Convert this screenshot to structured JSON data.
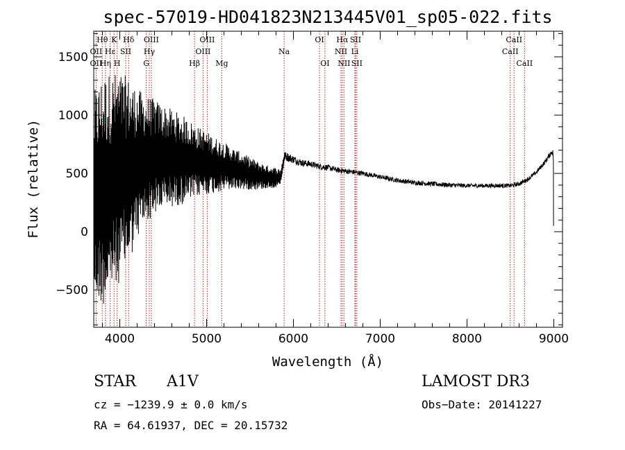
{
  "chart_data": {
    "type": "line",
    "title": "spec-57019-HD041823N213445V01_sp05-022.fits",
    "xlabel": "Wavelength (Å)",
    "ylabel": "Flux (relative)",
    "xlim": [
      3700,
      9100
    ],
    "ylim": [
      -820,
      1720
    ],
    "xticks": [
      4000,
      5000,
      6000,
      7000,
      8000,
      9000
    ],
    "yticks": [
      -500,
      0,
      500,
      1000,
      1500
    ],
    "xtick_labels": [
      "4000",
      "5000",
      "6000",
      "7000",
      "8000",
      "9000"
    ],
    "ytick_labels": [
      "−500",
      "0",
      "500",
      "1000",
      "1500"
    ],
    "spectrum_envelope": {
      "description": "Flux (relative) vs wavelength, approximate continuum and noise amplitude",
      "x": [
        3700,
        3800,
        3900,
        4000,
        4100,
        4200,
        4300,
        4400,
        4500,
        4600,
        4700,
        4800,
        4900,
        5000,
        5100,
        5200,
        5300,
        5400,
        5500,
        5600,
        5700,
        5850,
        5900,
        6000,
        6100,
        6200,
        6300,
        6400,
        6500,
        6600,
        6700,
        6800,
        7000,
        7200,
        7400,
        7600,
        7800,
        8000,
        8200,
        8400,
        8500,
        8600,
        8700,
        8800,
        8900,
        8980,
        9000
      ],
      "continuum": [
        300,
        350,
        420,
        470,
        520,
        580,
        620,
        640,
        640,
        630,
        620,
        610,
        600,
        590,
        570,
        560,
        540,
        520,
        500,
        480,
        470,
        460,
        650,
        620,
        590,
        580,
        560,
        550,
        530,
        520,
        510,
        500,
        470,
        440,
        420,
        410,
        400,
        395,
        395,
        395,
        395,
        410,
        450,
        510,
        600,
        690,
        620
      ],
      "amplitude": [
        900,
        1000,
        950,
        900,
        800,
        650,
        550,
        500,
        450,
        420,
        390,
        350,
        300,
        270,
        240,
        210,
        180,
        160,
        140,
        120,
        100,
        80,
        40,
        35,
        30,
        28,
        26,
        25,
        24,
        23,
        22,
        21,
        20,
        20,
        20,
        20,
        20,
        18,
        18,
        18,
        18,
        18,
        18,
        18,
        20,
        25,
        80
      ]
    },
    "spectral_lines": [
      {
        "label": "Hθ",
        "wavelength": 3798,
        "row": 1
      },
      {
        "label": "OII",
        "wavelength": 3727,
        "row": 2
      },
      {
        "label": "OII",
        "wavelength": 3727,
        "row": 3
      },
      {
        "label": "Hη",
        "wavelength": 3835,
        "row": 3
      },
      {
        "label": "Hε",
        "wavelength": 3889,
        "row": 2
      },
      {
        "label": "K",
        "wavelength": 3934,
        "row": 1
      },
      {
        "label": "H",
        "wavelength": 3969,
        "row": 3
      },
      {
        "label": "Hδ",
        "wavelength": 4102,
        "row": 1
      },
      {
        "label": "SII",
        "wavelength": 4068,
        "row": 2
      },
      {
        "label": "OIII",
        "wavelength": 4363,
        "row": 1
      },
      {
        "label": "Hγ",
        "wavelength": 4340,
        "row": 2
      },
      {
        "label": "G",
        "wavelength": 4305,
        "row": 3
      },
      {
        "label": "Hβ",
        "wavelength": 4861,
        "row": 3
      },
      {
        "label": "OIII",
        "wavelength": 5007,
        "row": 1
      },
      {
        "label": "OIII",
        "wavelength": 4959,
        "row": 2
      },
      {
        "label": "Mg",
        "wavelength": 5175,
        "row": 3
      },
      {
        "label": "Na",
        "wavelength": 5893,
        "row": 2
      },
      {
        "label": "OI",
        "wavelength": 6300,
        "row": 1
      },
      {
        "label": "OI",
        "wavelength": 6363,
        "row": 3
      },
      {
        "label": "Hα",
        "wavelength": 6563,
        "row": 1
      },
      {
        "label": "NII",
        "wavelength": 6548,
        "row": 2
      },
      {
        "label": "NII",
        "wavelength": 6583,
        "row": 3
      },
      {
        "label": "SII",
        "wavelength": 6716,
        "row": 1
      },
      {
        "label": "Li",
        "wavelength": 6708,
        "row": 2
      },
      {
        "label": "SII",
        "wavelength": 6731,
        "row": 3
      },
      {
        "label": "CaII",
        "wavelength": 8542,
        "row": 1
      },
      {
        "label": "CaII",
        "wavelength": 8498,
        "row": 2
      },
      {
        "label": "CaII",
        "wavelength": 8662,
        "row": 3
      }
    ]
  },
  "info": {
    "class": "STAR",
    "subclass": "A1V",
    "survey": "LAMOST DR3",
    "cz": "cz = −1239.9 ± 0.0 km/s",
    "obs_date": "Obs−Date: 20141227",
    "coords": "RA =  64.61937, DEC =  20.15732"
  },
  "colors": {
    "spectrum": "#000000",
    "line_marker": "#b22222",
    "axes": "#000000"
  }
}
